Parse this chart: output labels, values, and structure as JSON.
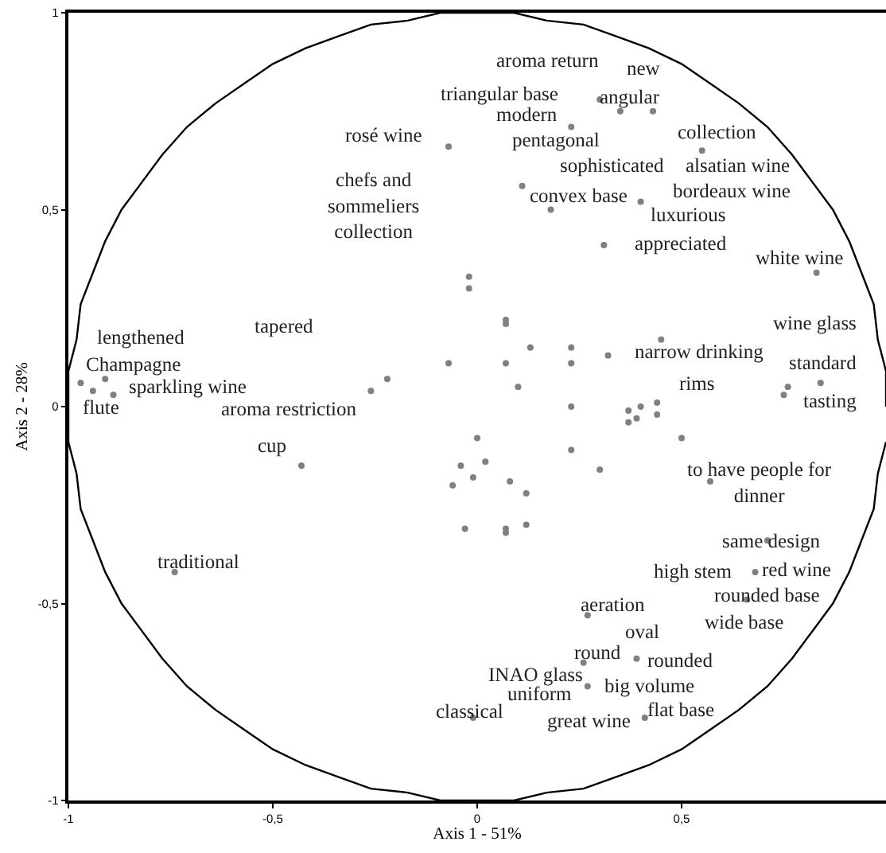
{
  "chart_data": {
    "type": "scatter",
    "xlabel": "Axis 1 - 51%",
    "ylabel": "Axis 2 - 28%",
    "xlim": [
      -1,
      1
    ],
    "ylim": [
      -1,
      1
    ],
    "xticks": [
      -1,
      {
        "value": -0.5,
        "label": "-0,5"
      },
      0,
      {
        "value": 0.5,
        "label": "0,5"
      }
    ],
    "yticks": [
      -1,
      {
        "value": -0.5,
        "label": "-0,5"
      },
      0,
      {
        "value": 0.5,
        "label": "0,5"
      },
      1
    ],
    "grid": false,
    "series": [
      {
        "type": "line",
        "color": "#000000",
        "marker": "none",
        "line_style": "solid",
        "x": [
          1,
          1,
          0.98,
          0.97,
          0.94,
          0.91,
          0.87,
          0.82,
          0.77,
          0.71,
          0.64,
          0.57,
          0.5,
          0.42,
          0.34,
          0.26,
          0.17,
          0.09,
          0,
          -0.09,
          -0.17,
          -0.26,
          -0.34,
          -0.42,
          -0.5,
          -0.57,
          -0.64,
          -0.71,
          -0.77,
          -0.82,
          -0.87,
          -0.91,
          -0.94,
          -0.97,
          -0.98,
          -1,
          -1,
          -1,
          -0.98,
          -0.97,
          -0.94,
          -0.91,
          -0.87,
          -0.82,
          -0.77,
          -0.71,
          -0.64,
          -0.57,
          -0.5,
          -0.42,
          -0.34,
          -0.26,
          -0.17,
          -0.09,
          0,
          0.09,
          0.17,
          0.26,
          0.34,
          0.42,
          0.5,
          0.57,
          0.64,
          0.71,
          0.77,
          0.82,
          0.87,
          0.91,
          0.94,
          0.97,
          0.98,
          1
        ],
        "values": [
          0,
          0.09,
          0.17,
          0.26,
          0.34,
          0.42,
          0.5,
          0.57,
          0.64,
          0.71,
          0.77,
          0.82,
          0.87,
          0.91,
          0.94,
          0.97,
          0.98,
          1,
          1,
          1,
          0.98,
          0.97,
          0.94,
          0.91,
          0.87,
          0.82,
          0.77,
          0.71,
          0.64,
          0.57,
          0.5,
          0.42,
          0.34,
          0.26,
          0.17,
          0.09,
          0,
          -0.09,
          -0.17,
          -0.26,
          -0.34,
          -0.42,
          -0.5,
          -0.57,
          -0.64,
          -0.71,
          -0.77,
          -0.82,
          -0.87,
          -0.91,
          -0.94,
          -0.97,
          -0.98,
          -1,
          -1,
          -1,
          -0.98,
          -0.97,
          -0.94,
          -0.91,
          -0.87,
          -0.82,
          -0.77,
          -0.71,
          -0.64,
          -0.57,
          -0.5,
          -0.42,
          -0.34,
          -0.26,
          -0.17,
          -0.09
        ]
      },
      {
        "color": "#808080",
        "marker": "circle",
        "x": [
          -0.97,
          -0.94,
          -0.91,
          -0.89,
          -0.26,
          -0.22,
          0.3,
          0.35,
          0.43,
          0.23,
          -0.07,
          0.55,
          0.11,
          0.18,
          0.4,
          0.31,
          0.83,
          -0.02,
          -0.02,
          0.07,
          0.07,
          0.45,
          -0.07,
          0.07,
          0.13,
          0.23,
          0.23,
          0.32,
          0.1,
          0.75,
          0.76,
          0.84,
          0.23,
          0.37,
          0.4,
          0.44,
          -0.43,
          -0.74,
          0.0,
          0.23,
          0.3,
          0.5,
          -0.04,
          0.02,
          -0.06,
          -0.01,
          0.08,
          0.12,
          -0.03,
          0.07,
          0.07,
          0.12,
          0.57,
          0.71,
          0.68,
          0.66,
          0.27,
          0.39,
          0.26,
          0.27,
          -0.01,
          0.41,
          0.37,
          0.39,
          0.44
        ],
        "values": [
          0.06,
          0.04,
          0.07,
          0.03,
          0.04,
          0.07,
          0.78,
          0.75,
          0.75,
          0.71,
          0.66,
          0.65,
          0.56,
          0.5,
          0.52,
          0.41,
          0.34,
          0.33,
          0.3,
          0.22,
          0.21,
          0.17,
          0.11,
          0.11,
          0.15,
          0.15,
          0.11,
          0.13,
          0.05,
          0.03,
          0.05,
          0.06,
          0.0,
          -0.01,
          0.0,
          0.01,
          -0.15,
          -0.42,
          -0.08,
          -0.11,
          -0.16,
          -0.08,
          -0.15,
          -0.14,
          -0.2,
          -0.18,
          -0.19,
          -0.22,
          -0.31,
          -0.31,
          -0.32,
          -0.3,
          -0.19,
          -0.34,
          -0.42,
          -0.49,
          -0.53,
          -0.64,
          -0.65,
          -0.71,
          -0.79,
          -0.79,
          -0.04,
          -0.03,
          -0.02
        ]
      }
    ],
    "annotations": [
      {
        "text": "lengthened",
        "x": -0.91,
        "y": 0.07
      },
      "tapered",
      {
        "text": "Champagne",
        "x": -0.97,
        "y": 0.06
      },
      {
        "text": "sparkling wine",
        "x": -0.89,
        "y": 0.03
      },
      {
        "text": "flute",
        "x": -0.94,
        "y": 0.04
      },
      "aroma restriction",
      {
        "text": "aroma return",
        "x": 0.3,
        "y": 0.78
      },
      {
        "text": "new",
        "x": 0.43,
        "y": 0.75
      },
      {
        "text": "triangular base",
        "x": 0.3,
        "y": 0.78
      },
      {
        "text": "angular",
        "x": 0.35,
        "y": 0.75
      },
      {
        "text": "modern",
        "x": 0.23,
        "y": 0.71
      },
      {
        "text": "rosé wine",
        "x": -0.07,
        "y": 0.66
      },
      {
        "text": "pentagonal",
        "x": 0.23,
        "y": 0.71
      },
      {
        "text": "collection",
        "x": 0.55,
        "y": 0.65
      },
      {
        "text": "sophisticated",
        "x": 0.11,
        "y": 0.56
      },
      {
        "text": "alsatian wine",
        "x": 0.55,
        "y": 0.65
      },
      {
        "text": "chefs and\nsommeliers\ncollection",
        "x": -0.07,
        "y": 0.66
      },
      {
        "text": "convex base",
        "x": 0.18,
        "y": 0.5
      },
      {
        "text": "bordeaux wine",
        "x": 0.4,
        "y": 0.52
      },
      {
        "text": "luxurious",
        "x": 0.4,
        "y": 0.52
      },
      {
        "text": "appreciated",
        "x": 0.31,
        "y": 0.41
      },
      {
        "text": "white wine",
        "x": 0.83,
        "y": 0.34
      },
      {
        "text": "wine glass",
        "x": 0.84,
        "y": 0.06
      },
      {
        "text": "narrow drinking",
        "x": 0.45,
        "y": 0.17
      },
      {
        "text": "rims",
        "x": 0.44,
        "y": 0.01
      },
      {
        "text": "standard",
        "x": 0.84,
        "y": 0.06
      },
      {
        "text": "tasting",
        "x": 0.76,
        "y": 0.05
      },
      {
        "text": "cup",
        "x": -0.43,
        "y": -0.15
      },
      {
        "text": "traditional",
        "x": -0.74,
        "y": -0.42
      },
      {
        "text": "to have people for\ndinner",
        "x": 0.57,
        "y": -0.19
      },
      {
        "text": "same design",
        "x": 0.71,
        "y": -0.34
      },
      {
        "text": "high stem",
        "x": 0.68,
        "y": -0.42
      },
      {
        "text": "red wine",
        "x": 0.68,
        "y": -0.42
      },
      {
        "text": "rounded base",
        "x": 0.66,
        "y": -0.49
      },
      {
        "text": "wide base",
        "x": 0.66,
        "y": -0.49
      },
      {
        "text": "aeration",
        "x": 0.27,
        "y": -0.53
      },
      {
        "text": "oval",
        "x": 0.39,
        "y": -0.64
      },
      {
        "text": "round",
        "x": 0.26,
        "y": -0.65
      },
      {
        "text": "rounded",
        "x": 0.39,
        "y": -0.64
      },
      {
        "text": "INAO glass",
        "x": 0.27,
        "y": -0.71
      },
      {
        "text": "big volume",
        "x": 0.27,
        "y": -0.71
      },
      {
        "text": "uniform",
        "x": 0.27,
        "y": -0.71
      },
      {
        "text": "classical",
        "x": -0.01,
        "y": -0.79
      },
      {
        "text": "great wine",
        "x": 0.41,
        "y": -0.79
      },
      {
        "text": "flat base",
        "x": 0.41,
        "y": -0.79
      }
    ]
  }
}
